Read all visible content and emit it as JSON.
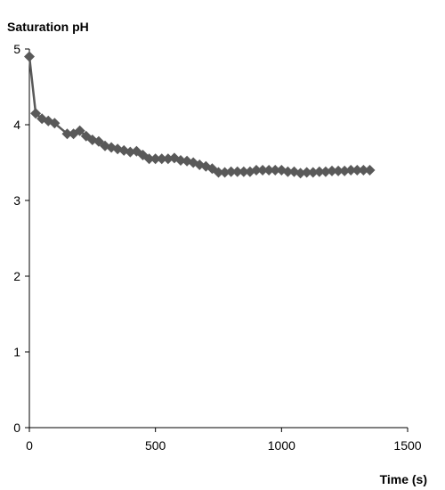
{
  "chart_data": {
    "type": "line",
    "title": "",
    "xlabel": "Time (s)",
    "ylabel": "Saturation pH",
    "xlim": [
      0,
      1500
    ],
    "ylim": [
      0,
      5
    ],
    "x_ticks": [
      0,
      500,
      1000,
      1500
    ],
    "y_ticks": [
      0,
      1,
      2,
      3,
      4,
      5
    ],
    "grid": false,
    "legend": "none",
    "marker": "diamond",
    "series": [
      {
        "color": "#595959",
        "x": [
          0,
          25,
          50,
          75,
          100,
          150,
          175,
          200,
          225,
          250,
          275,
          300,
          325,
          350,
          375,
          400,
          425,
          450,
          475,
          500,
          525,
          550,
          575,
          600,
          625,
          650,
          675,
          700,
          725,
          750,
          775,
          800,
          825,
          850,
          875,
          900,
          925,
          950,
          975,
          1000,
          1025,
          1050,
          1075,
          1100,
          1125,
          1150,
          1175,
          1200,
          1225,
          1250,
          1275,
          1300,
          1325,
          1350
        ],
        "y": [
          4.9,
          4.15,
          4.08,
          4.05,
          4.02,
          3.88,
          3.88,
          3.92,
          3.85,
          3.8,
          3.78,
          3.72,
          3.7,
          3.68,
          3.66,
          3.64,
          3.65,
          3.6,
          3.55,
          3.55,
          3.55,
          3.55,
          3.56,
          3.53,
          3.52,
          3.5,
          3.47,
          3.45,
          3.42,
          3.37,
          3.37,
          3.38,
          3.38,
          3.38,
          3.38,
          3.4,
          3.4,
          3.4,
          3.4,
          3.4,
          3.38,
          3.38,
          3.36,
          3.37,
          3.37,
          3.38,
          3.38,
          3.39,
          3.39,
          3.39,
          3.4,
          3.4,
          3.4,
          3.4
        ]
      }
    ]
  }
}
